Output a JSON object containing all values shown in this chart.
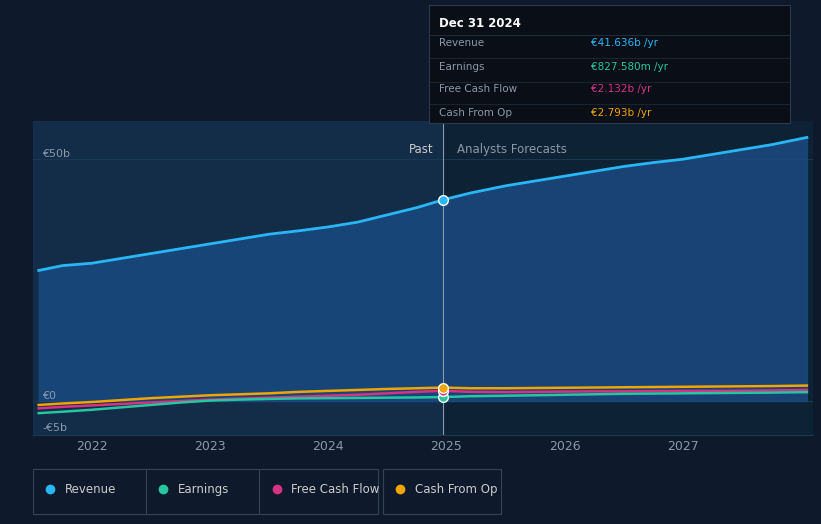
{
  "bg_color": "#0e1a2b",
  "plot_bg_color": "#0e2236",
  "grid_color": "#1a3a52",
  "x_ticks": [
    2022,
    2023,
    2024,
    2025,
    2026,
    2027
  ],
  "x_min": 2021.5,
  "x_max": 2028.1,
  "y_min": -7,
  "y_max": 58,
  "divider_x": 2024.97,
  "past_label": "Past",
  "forecast_label": "Analysts Forecasts",
  "revenue": {
    "x": [
      2021.55,
      2021.75,
      2022.0,
      2022.25,
      2022.5,
      2022.75,
      2023.0,
      2023.25,
      2023.5,
      2023.75,
      2024.0,
      2024.25,
      2024.5,
      2024.75,
      2024.97,
      2025.2,
      2025.5,
      2025.75,
      2026.0,
      2026.25,
      2026.5,
      2026.75,
      2027.0,
      2027.25,
      2027.5,
      2027.75,
      2028.05
    ],
    "y": [
      27,
      28,
      28.5,
      29.5,
      30.5,
      31.5,
      32.5,
      33.5,
      34.5,
      35.2,
      36,
      37,
      38.5,
      40,
      41.6,
      43,
      44.5,
      45.5,
      46.5,
      47.5,
      48.5,
      49.3,
      50,
      51,
      52,
      53,
      54.5
    ],
    "color": "#29b6f6",
    "fill_color": "#1a4a80",
    "dot_x": 2024.97,
    "dot_y": 41.6,
    "dot_color": "#29b6f6",
    "label": "Revenue"
  },
  "earnings": {
    "x": [
      2021.55,
      2021.75,
      2022.0,
      2022.25,
      2022.5,
      2022.75,
      2023.0,
      2023.25,
      2023.5,
      2023.75,
      2024.0,
      2024.25,
      2024.5,
      2024.75,
      2024.97,
      2025.2,
      2025.5,
      2025.75,
      2026.0,
      2026.25,
      2026.5,
      2026.75,
      2027.0,
      2027.25,
      2027.5,
      2027.75,
      2028.05
    ],
    "y": [
      -2.5,
      -2.2,
      -1.8,
      -1.3,
      -0.8,
      -0.3,
      0.1,
      0.3,
      0.45,
      0.55,
      0.6,
      0.65,
      0.7,
      0.75,
      0.83,
      1.0,
      1.1,
      1.2,
      1.3,
      1.4,
      1.5,
      1.55,
      1.6,
      1.65,
      1.7,
      1.75,
      1.85
    ],
    "color": "#26c6a0",
    "dot_x": 2024.97,
    "dot_y": 0.83,
    "dot_color": "#26c6a0",
    "label": "Earnings"
  },
  "fcf": {
    "x": [
      2021.55,
      2021.75,
      2022.0,
      2022.25,
      2022.5,
      2022.75,
      2023.0,
      2023.25,
      2023.5,
      2023.75,
      2024.0,
      2024.25,
      2024.5,
      2024.75,
      2024.97,
      2025.2,
      2025.5,
      2025.75,
      2026.0,
      2026.25,
      2026.5,
      2026.75,
      2027.0,
      2027.25,
      2027.5,
      2027.75,
      2028.05
    ],
    "y": [
      -1.5,
      -1.2,
      -0.9,
      -0.6,
      -0.3,
      0.0,
      0.3,
      0.5,
      0.7,
      0.9,
      1.1,
      1.3,
      1.6,
      1.9,
      2.13,
      1.9,
      1.85,
      1.9,
      1.95,
      2.0,
      2.0,
      2.05,
      2.1,
      2.1,
      2.15,
      2.2,
      2.3
    ],
    "color": "#d63384",
    "dot_x": 2024.97,
    "dot_y": 2.13,
    "dot_color": "#d63384",
    "label": "Free Cash Flow"
  },
  "cashfromop": {
    "x": [
      2021.55,
      2021.75,
      2022.0,
      2022.25,
      2022.5,
      2022.75,
      2023.0,
      2023.25,
      2023.5,
      2023.75,
      2024.0,
      2024.25,
      2024.5,
      2024.75,
      2024.97,
      2025.2,
      2025.5,
      2025.75,
      2026.0,
      2026.25,
      2026.5,
      2026.75,
      2027.0,
      2027.25,
      2027.5,
      2027.75,
      2028.05
    ],
    "y": [
      -0.8,
      -0.5,
      -0.2,
      0.2,
      0.6,
      0.9,
      1.2,
      1.4,
      1.6,
      1.9,
      2.1,
      2.3,
      2.5,
      2.65,
      2.79,
      2.65,
      2.65,
      2.7,
      2.75,
      2.8,
      2.85,
      2.9,
      2.95,
      3.0,
      3.05,
      3.1,
      3.2
    ],
    "color": "#f0a500",
    "dot_x": 2024.97,
    "dot_y": 2.79,
    "dot_color": "#f0a500",
    "label": "Cash From Op"
  },
  "tooltip": {
    "title": "Dec 31 2024",
    "title_color": "#ffffff",
    "bg_color": "#0a0e17",
    "border_color": "#2a3a4a",
    "rows": [
      {
        "label": "Revenue",
        "value": "€41.636b /yr",
        "value_color": "#29b6f6"
      },
      {
        "label": "Earnings",
        "value": "€827.580m /yr",
        "value_color": "#26c6a0"
      },
      {
        "label": "Free Cash Flow",
        "value": "€2.132b /yr",
        "value_color": "#d63384"
      },
      {
        "label": "Cash From Op",
        "value": "€2.793b /yr",
        "value_color": "#f0a500"
      }
    ],
    "label_color": "#8899aa",
    "divider_color": "#1e2e3e"
  }
}
